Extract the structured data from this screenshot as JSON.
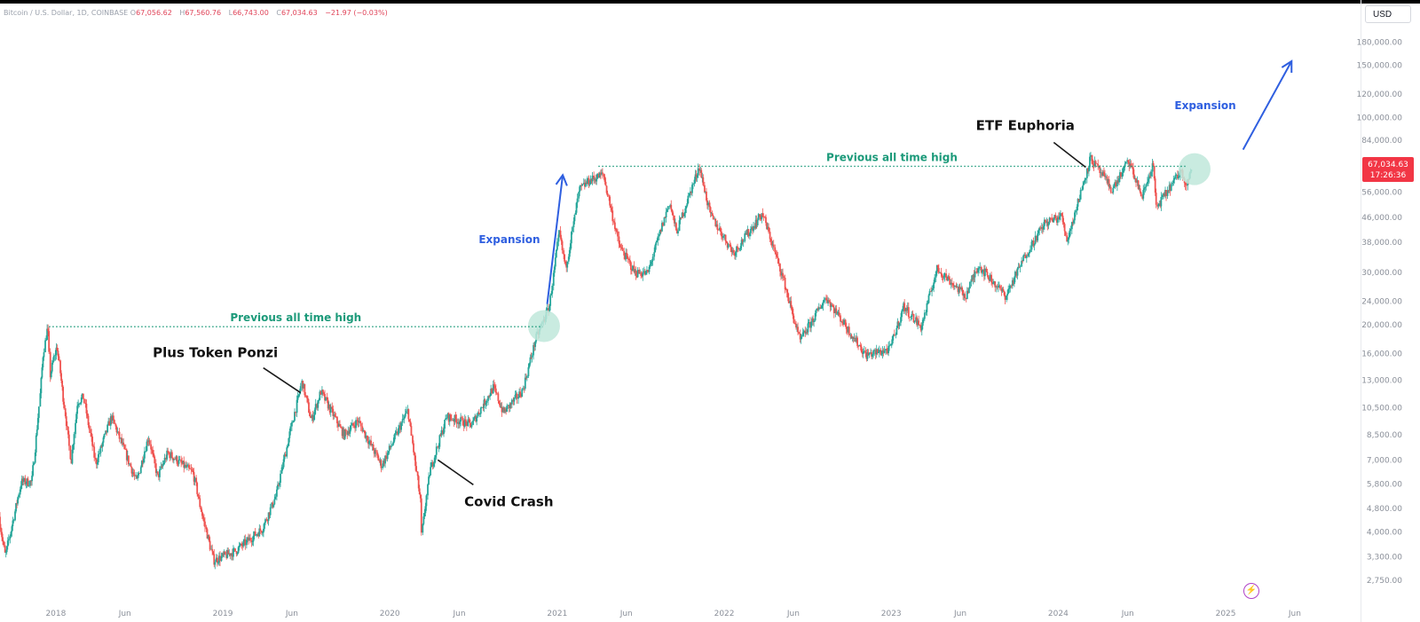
{
  "legend": {
    "symbol": "Bitcoin / U.S. Dollar, 1D, COINBASE",
    "open_label": "O",
    "open": "67,056.62",
    "high_label": "H",
    "high": "67,560.76",
    "low_label": "L",
    "low": "66,743.00",
    "close_label": "C",
    "close": "67,034.63",
    "change": "−21.97 (−0.03%)"
  },
  "currency": "USD",
  "price_tag": {
    "price": "67,034.63",
    "countdown": "17:26:36"
  },
  "colors": {
    "up": "#26a69a",
    "down": "#ef5350",
    "annotation_blue": "#2f5fe0",
    "ath_green": "#1c9a7a",
    "tag_red": "#f23645",
    "circle": "#bfe8db"
  },
  "chart_data": {
    "type": "candlestick",
    "title": "Bitcoin / U.S. Dollar, 1D, COINBASE",
    "xlabel": "",
    "ylabel": "",
    "y_scale": "log",
    "ylim": [
      2600,
      200000
    ],
    "xlim": [
      "2017-09-01",
      "2025-10-15"
    ],
    "grid": false,
    "x_ticks": [
      {
        "label": "2018",
        "date": "2018-01-01"
      },
      {
        "label": "Jun",
        "date": "2018-06-01"
      },
      {
        "label": "2019",
        "date": "2019-01-01"
      },
      {
        "label": "Jun",
        "date": "2019-06-01"
      },
      {
        "label": "2020",
        "date": "2020-01-01"
      },
      {
        "label": "Jun",
        "date": "2020-06-01"
      },
      {
        "label": "2021",
        "date": "2021-01-01"
      },
      {
        "label": "Jun",
        "date": "2021-06-01"
      },
      {
        "label": "2022",
        "date": "2022-01-01"
      },
      {
        "label": "Jun",
        "date": "2022-06-01"
      },
      {
        "label": "2023",
        "date": "2023-01-01"
      },
      {
        "label": "Jun",
        "date": "2023-06-01"
      },
      {
        "label": "2024",
        "date": "2024-01-01"
      },
      {
        "label": "Jun",
        "date": "2024-06-01"
      },
      {
        "label": "2025",
        "date": "2025-01-01"
      },
      {
        "label": "Jun",
        "date": "2025-06-01"
      }
    ],
    "y_ticks": [
      {
        "label": "180,000.00",
        "value": 180000
      },
      {
        "label": "150,000.00",
        "value": 150000
      },
      {
        "label": "120,000.00",
        "value": 120000
      },
      {
        "label": "100,000.00",
        "value": 100000
      },
      {
        "label": "84,000.00",
        "value": 84000
      },
      {
        "label": "56,000.00",
        "value": 56000
      },
      {
        "label": "46,000.00",
        "value": 46000
      },
      {
        "label": "38,000.00",
        "value": 38000
      },
      {
        "label": "30,000.00",
        "value": 30000
      },
      {
        "label": "24,000.00",
        "value": 24000
      },
      {
        "label": "20,000.00",
        "value": 20000
      },
      {
        "label": "16,000.00",
        "value": 16000
      },
      {
        "label": "13,000.00",
        "value": 13000
      },
      {
        "label": "10,500.00",
        "value": 10500
      },
      {
        "label": "8,500.00",
        "value": 8500
      },
      {
        "label": "7,000.00",
        "value": 7000
      },
      {
        "label": "5,800.00",
        "value": 5800
      },
      {
        "label": "4,800.00",
        "value": 4800
      },
      {
        "label": "4,000.00",
        "value": 4000
      },
      {
        "label": "3,300.00",
        "value": 3300
      },
      {
        "label": "2,750.00",
        "value": 2750
      }
    ],
    "price_path": [
      [
        "2017-09-01",
        4500
      ],
      [
        "2017-09-15",
        3300
      ],
      [
        "2017-10-01",
        4300
      ],
      [
        "2017-10-20",
        5900
      ],
      [
        "2017-11-12",
        5900
      ],
      [
        "2017-11-29",
        11000
      ],
      [
        "2017-12-07",
        16000
      ],
      [
        "2017-12-17",
        19700
      ],
      [
        "2017-12-22",
        13500
      ],
      [
        "2018-01-06",
        17000
      ],
      [
        "2018-02-06",
        6900
      ],
      [
        "2018-02-20",
        11000
      ],
      [
        "2018-03-05",
        11400
      ],
      [
        "2018-04-01",
        6800
      ],
      [
        "2018-05-05",
        9800
      ],
      [
        "2018-06-29",
        5900
      ],
      [
        "2018-07-25",
        8400
      ],
      [
        "2018-08-14",
        6100
      ],
      [
        "2018-09-05",
        7400
      ],
      [
        "2018-10-31",
        6300
      ],
      [
        "2018-11-19",
        4600
      ],
      [
        "2018-12-15",
        3200
      ],
      [
        "2019-01-31",
        3450
      ],
      [
        "2019-03-31",
        4100
      ],
      [
        "2019-04-30",
        5300
      ],
      [
        "2019-05-30",
        8600
      ],
      [
        "2019-06-26",
        12900
      ],
      [
        "2019-07-16",
        9500
      ],
      [
        "2019-08-06",
        11900
      ],
      [
        "2019-09-25",
        8500
      ],
      [
        "2019-10-26",
        9500
      ],
      [
        "2019-12-17",
        6700
      ],
      [
        "2020-02-12",
        10300
      ],
      [
        "2020-03-12",
        4900
      ],
      [
        "2020-03-13",
        3900
      ],
      [
        "2020-03-31",
        6400
      ],
      [
        "2020-05-07",
        9800
      ],
      [
        "2020-06-30",
        9200
      ],
      [
        "2020-08-17",
        12300
      ],
      [
        "2020-09-08",
        10100
      ],
      [
        "2020-10-20",
        12000
      ],
      [
        "2020-11-17",
        17800
      ],
      [
        "2020-12-17",
        23000
      ],
      [
        "2021-01-08",
        41000
      ],
      [
        "2021-01-22",
        31000
      ],
      [
        "2021-02-21",
        57000
      ],
      [
        "2021-03-13",
        61000
      ],
      [
        "2021-04-14",
        64500
      ],
      [
        "2021-05-19",
        37000
      ],
      [
        "2021-06-22",
        30000
      ],
      [
        "2021-07-20",
        29800
      ],
      [
        "2021-09-06",
        52000
      ],
      [
        "2021-09-21",
        41000
      ],
      [
        "2021-11-10",
        68500
      ],
      [
        "2021-12-04",
        47000
      ],
      [
        "2022-01-24",
        35000
      ],
      [
        "2022-03-28",
        47500
      ],
      [
        "2022-05-10",
        29500
      ],
      [
        "2022-06-18",
        17600
      ],
      [
        "2022-08-14",
        24800
      ],
      [
        "2022-09-30",
        19400
      ],
      [
        "2022-11-09",
        15800
      ],
      [
        "2022-12-31",
        16500
      ],
      [
        "2023-01-31",
        23100
      ],
      [
        "2023-03-10",
        19600
      ],
      [
        "2023-04-14",
        31000
      ],
      [
        "2023-06-15",
        25000
      ],
      [
        "2023-07-13",
        31800
      ],
      [
        "2023-09-11",
        25000
      ],
      [
        "2023-10-24",
        34500
      ],
      [
        "2023-12-05",
        44000
      ],
      [
        "2024-01-11",
        46500
      ],
      [
        "2024-01-23",
        38500
      ],
      [
        "2024-03-14",
        73000
      ],
      [
        "2024-05-01",
        57000
      ],
      [
        "2024-06-05",
        71500
      ],
      [
        "2024-07-05",
        54000
      ],
      [
        "2024-07-29",
        70000
      ],
      [
        "2024-08-05",
        49500
      ],
      [
        "2024-09-27",
        66000
      ],
      [
        "2024-10-10",
        60000
      ],
      [
        "2024-10-20",
        67034.63
      ]
    ],
    "annotations": [
      {
        "text": "Previous all time high",
        "type": "level",
        "value": 19700,
        "from": "2017-12-17",
        "to": "2020-11-30"
      },
      {
        "text": "Previous all time high",
        "type": "level",
        "value": 68500,
        "from": "2021-04-01",
        "to": "2024-10-05"
      },
      {
        "text": "Expansion",
        "type": "arrow",
        "from": [
          "2020-12-10",
          23500
        ],
        "to": [
          "2021-01-13",
          64000
        ]
      },
      {
        "text": "Expansion",
        "type": "arrow",
        "from": [
          "2025-02-08",
          78000
        ],
        "to": [
          "2025-05-25",
          155000
        ]
      },
      {
        "text": "Plus Token Ponzi",
        "type": "callout",
        "points_to": [
          "2019-06-20",
          11800
        ]
      },
      {
        "text": "Covid Crash",
        "type": "callout",
        "points_to": [
          "2020-04-15",
          7000
        ]
      },
      {
        "text": "ETF Euphoria",
        "type": "callout",
        "points_to": [
          "2024-03-01",
          68000
        ]
      },
      {
        "text": "",
        "type": "circle",
        "at": [
          "2020-12-03",
          19800
        ]
      },
      {
        "text": "",
        "type": "circle",
        "at": [
          "2024-10-25",
          67034.63
        ]
      }
    ]
  }
}
